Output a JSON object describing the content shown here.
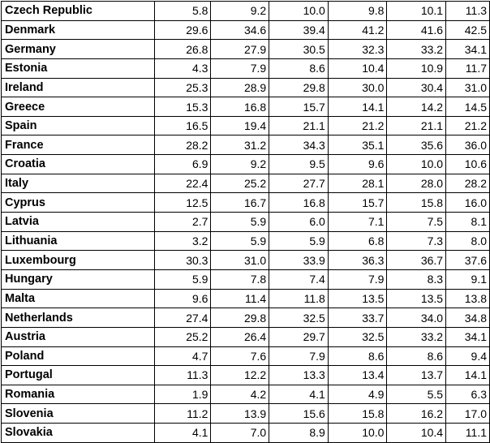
{
  "table": {
    "rows": [
      {
        "country": "Czech Republic",
        "values": [
          "5.8",
          "9.2",
          "10.0",
          "9.8",
          "10.1",
          "11.3"
        ]
      },
      {
        "country": "Denmark",
        "values": [
          "29.6",
          "34.6",
          "39.4",
          "41.2",
          "41.6",
          "42.5"
        ]
      },
      {
        "country": "Germany",
        "values": [
          "26.8",
          "27.9",
          "30.5",
          "32.3",
          "33.2",
          "34.1"
        ]
      },
      {
        "country": "Estonia",
        "values": [
          "4.3",
          "7.9",
          "8.6",
          "10.4",
          "10.9",
          "11.7"
        ]
      },
      {
        "country": "Ireland",
        "values": [
          "25.3",
          "28.9",
          "29.8",
          "30.0",
          "30.4",
          "31.0"
        ]
      },
      {
        "country": "Greece",
        "values": [
          "15.3",
          "16.8",
          "15.7",
          "14.1",
          "14.2",
          "14.5"
        ]
      },
      {
        "country": "Spain",
        "values": [
          "16.5",
          "19.4",
          "21.1",
          "21.2",
          "21.1",
          "21.2"
        ]
      },
      {
        "country": "France",
        "values": [
          "28.2",
          "31.2",
          "34.3",
          "35.1",
          "35.6",
          "36.0"
        ]
      },
      {
        "country": "Croatia",
        "values": [
          "6.9",
          "9.2",
          "9.5",
          "9.6",
          "10.0",
          "10.6"
        ]
      },
      {
        "country": "Italy",
        "values": [
          "22.4",
          "25.2",
          "27.7",
          "28.1",
          "28.0",
          "28.2"
        ]
      },
      {
        "country": "Cyprus",
        "values": [
          "12.5",
          "16.7",
          "16.8",
          "15.7",
          "15.8",
          "16.0"
        ]
      },
      {
        "country": "Latvia",
        "values": [
          "2.7",
          "5.9",
          "6.0",
          "7.1",
          "7.5",
          "8.1"
        ]
      },
      {
        "country": "Lithuania",
        "values": [
          "3.2",
          "5.9",
          "5.9",
          "6.8",
          "7.3",
          "8.0"
        ]
      },
      {
        "country": "Luxembourg",
        "values": [
          "30.3",
          "31.0",
          "33.9",
          "36.3",
          "36.7",
          "37.6"
        ]
      },
      {
        "country": "Hungary",
        "values": [
          "5.9",
          "7.8",
          "7.4",
          "7.9",
          "8.3",
          "9.1"
        ]
      },
      {
        "country": "Malta",
        "values": [
          "9.6",
          "11.4",
          "11.8",
          "13.5",
          "13.5",
          "13.8"
        ]
      },
      {
        "country": "Netherlands",
        "values": [
          "27.4",
          "29.8",
          "32.5",
          "33.7",
          "34.0",
          "34.8"
        ]
      },
      {
        "country": "Austria",
        "values": [
          "25.2",
          "26.4",
          "29.7",
          "32.5",
          "33.2",
          "34.1"
        ]
      },
      {
        "country": "Poland",
        "values": [
          "4.7",
          "7.6",
          "7.9",
          "8.6",
          "8.6",
          "9.4"
        ]
      },
      {
        "country": "Portugal",
        "values": [
          "11.3",
          "12.2",
          "13.3",
          "13.4",
          "13.7",
          "14.1"
        ]
      },
      {
        "country": "Romania",
        "values": [
          "1.9",
          "4.2",
          "4.1",
          "4.9",
          "5.5",
          "6.3"
        ]
      },
      {
        "country": "Slovenia",
        "values": [
          "11.2",
          "13.9",
          "15.6",
          "15.8",
          "16.2",
          "17.0"
        ]
      },
      {
        "country": "Slovakia",
        "values": [
          "4.1",
          "7.0",
          "8.9",
          "10.0",
          "10.4",
          "11.1"
        ]
      }
    ]
  }
}
